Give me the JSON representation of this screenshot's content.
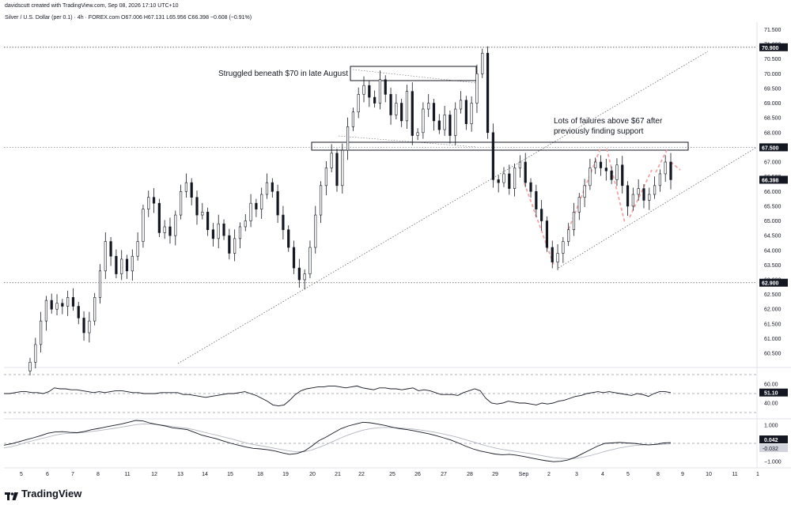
{
  "header": {
    "credit": "davidscutt created with TradingView.com, Sep 08, 2026 17:10 UTC+10",
    "symbol_line": "Silver / U.S. Dollar (per 0.1) · 4h · FOREX.com  O67.006  H67.131  L65.956  C66.398  −0.608 (−0.91%)"
  },
  "brand": {
    "name": "TradingView",
    "icon": "tradingview-logo-icon"
  },
  "colors": {
    "up": "#131722",
    "down": "#131722",
    "hline": "#555555",
    "callout": "#131722",
    "arrow": "#f2a3a3",
    "rsi": "#131722",
    "macd_signal": "#b2b5be"
  },
  "chart_data": [
    {
      "type": "candlestick",
      "title": "Silver / U.S. Dollar (per 0.1) · 4h · FOREX.com",
      "x_ticks": [
        "5",
        "6",
        "7",
        "8",
        "11",
        "12",
        "13",
        "14",
        "15",
        "18",
        "19",
        "20",
        "21",
        "22",
        "25",
        "26",
        "27",
        "28",
        "29",
        "Sep",
        "2",
        "3",
        "4",
        "5",
        "8",
        "9",
        "10",
        "11",
        "1"
      ],
      "y_ticks": [
        60.5,
        61.0,
        61.5,
        62.0,
        62.5,
        63.0,
        63.5,
        64.0,
        64.5,
        65.0,
        65.5,
        66.0,
        66.5,
        67.0,
        67.5,
        68.0,
        68.5,
        69.0,
        69.5,
        70.0,
        70.5,
        71.0,
        71.5
      ],
      "y_range": [
        60.1,
        71.7
      ],
      "price_labels": [
        {
          "value": 70.9,
          "text": "70.900",
          "style": "dotted"
        },
        {
          "value": 67.5,
          "text": "67.500",
          "style": "solid"
        },
        {
          "value": 66.398,
          "text": "66.398",
          "style": "current"
        },
        {
          "value": 62.9,
          "text": "62.900",
          "style": "dotted"
        }
      ],
      "closes": [
        60.2,
        60.8,
        61.6,
        62.3,
        62.0,
        62.2,
        62.1,
        62.4,
        62.1,
        61.7,
        61.2,
        61.6,
        62.4,
        63.3,
        64.3,
        63.8,
        63.2,
        63.7,
        63.3,
        63.8,
        64.3,
        65.4,
        65.8,
        65.6,
        64.6,
        64.8,
        64.5,
        65.2,
        66.0,
        66.3,
        65.8,
        65.2,
        65.3,
        64.7,
        64.4,
        64.9,
        64.5,
        63.9,
        64.4,
        64.8,
        65.0,
        65.6,
        65.4,
        65.9,
        66.3,
        66.0,
        65.2,
        64.7,
        64.1,
        63.4,
        63.0,
        63.2,
        64.1,
        65.2,
        66.2,
        66.8,
        67.3,
        66.2,
        67.4,
        68.2,
        68.7,
        69.3,
        69.6,
        69.2,
        69.0,
        69.8,
        69.3,
        68.6,
        69.0,
        68.4,
        69.4,
        67.9,
        68.0,
        68.8,
        69.0,
        68.4,
        68.1,
        68.6,
        67.9,
        68.8,
        69.1,
        68.3,
        69.0,
        70.0,
        70.7,
        68.0,
        66.4,
        66.3,
        66.6,
        66.1,
        66.8,
        67.0,
        66.3,
        66.0,
        65.4,
        65.0,
        64.1,
        63.6,
        63.9,
        64.3,
        64.7,
        65.3,
        65.8,
        66.2,
        66.8,
        67.0,
        66.8,
        66.7,
        66.4,
        66.9,
        66.2,
        65.5,
        65.9,
        66.1,
        65.7,
        65.9,
        66.2,
        66.6,
        67.0,
        66.4
      ],
      "annotations": [
        {
          "text": "Struggled beneath $70 in late August"
        },
        {
          "text_line1": "Lots of failures above $67 after",
          "text_line2": "previously finding support"
        }
      ]
    },
    {
      "type": "line",
      "name": "rsi",
      "y_ticks": [
        40.0,
        60.0
      ],
      "levels": [
        70,
        50,
        30
      ],
      "current_label": "51.10",
      "y_range": [
        25,
        75
      ],
      "values": [
        50,
        50,
        51,
        52,
        52,
        51,
        51,
        50,
        52,
        56,
        55,
        55,
        54,
        54,
        53,
        52,
        51,
        52,
        51,
        52,
        53,
        53,
        52,
        51,
        51,
        50,
        50,
        50,
        51,
        51,
        51,
        51,
        49,
        49,
        48,
        47,
        46,
        47,
        48,
        49,
        50,
        50,
        51,
        52,
        50,
        48,
        45,
        42,
        38,
        37,
        38,
        43,
        49,
        53,
        55,
        56,
        57,
        57,
        58,
        58,
        57,
        56,
        57,
        58,
        56,
        55,
        54,
        56,
        56,
        55,
        55,
        54,
        55,
        56,
        53,
        54,
        53,
        51,
        49,
        49,
        49,
        48,
        51,
        53,
        55,
        53,
        45,
        40,
        39,
        40,
        42,
        41,
        40,
        40,
        39,
        38,
        40,
        39,
        40,
        42,
        43,
        45,
        47,
        48,
        50,
        51,
        52,
        51,
        52,
        51,
        50,
        49,
        48,
        50,
        49,
        47,
        50,
        52,
        52,
        51
      ]
    },
    {
      "type": "line",
      "name": "macd",
      "y_ticks": [
        -1.0,
        1.0
      ],
      "current_labels": [
        "0.042",
        "-0.032"
      ],
      "y_range": [
        -1.25,
        1.25
      ],
      "series": [
        {
          "name": "macd",
          "values": [
            -0.1,
            -0.02,
            0.08,
            0.2,
            0.3,
            0.42,
            0.55,
            0.62,
            0.64,
            0.6,
            0.58,
            0.65,
            0.75,
            0.82,
            0.9,
            0.98,
            1.05,
            1.15,
            1.25,
            1.22,
            1.1,
            1.02,
            0.95,
            0.85,
            0.8,
            0.75,
            0.6,
            0.45,
            0.35,
            0.25,
            0.12,
            0.0,
            -0.1,
            -0.2,
            -0.27,
            -0.3,
            -0.35,
            -0.42,
            -0.52,
            -0.6,
            -0.55,
            -0.42,
            -0.15,
            0.15,
            0.35,
            0.58,
            0.8,
            0.95,
            1.05,
            1.15,
            1.12,
            1.05,
            0.98,
            0.88,
            0.8,
            0.75,
            0.68,
            0.6,
            0.52,
            0.42,
            0.3,
            0.18,
            0.02,
            -0.15,
            -0.3,
            -0.42,
            -0.5,
            -0.58,
            -0.62,
            -0.6,
            -0.65,
            -0.72,
            -0.8,
            -0.88,
            -0.95,
            -1.0,
            -0.98,
            -0.9,
            -0.75,
            -0.55,
            -0.35,
            -0.15,
            0.0,
            0.02,
            0.05,
            0.02,
            0.0,
            -0.05,
            -0.08,
            -0.05,
            0.02,
            0.04
          ]
        },
        {
          "name": "signal",
          "values": [
            -0.25,
            -0.18,
            -0.08,
            0.05,
            0.15,
            0.25,
            0.35,
            0.45,
            0.52,
            0.55,
            0.57,
            0.6,
            0.65,
            0.7,
            0.76,
            0.82,
            0.88,
            0.95,
            1.02,
            1.06,
            1.05,
            1.02,
            0.98,
            0.92,
            0.87,
            0.82,
            0.74,
            0.64,
            0.54,
            0.45,
            0.35,
            0.25,
            0.14,
            0.03,
            -0.06,
            -0.13,
            -0.2,
            -0.27,
            -0.35,
            -0.42,
            -0.46,
            -0.45,
            -0.36,
            -0.22,
            -0.06,
            0.12,
            0.3,
            0.46,
            0.6,
            0.72,
            0.8,
            0.85,
            0.87,
            0.86,
            0.84,
            0.81,
            0.77,
            0.72,
            0.66,
            0.59,
            0.51,
            0.42,
            0.32,
            0.2,
            0.08,
            -0.04,
            -0.15,
            -0.25,
            -0.33,
            -0.39,
            -0.45,
            -0.51,
            -0.57,
            -0.64,
            -0.71,
            -0.78,
            -0.82,
            -0.84,
            -0.82,
            -0.76,
            -0.67,
            -0.56,
            -0.44,
            -0.34,
            -0.25,
            -0.18,
            -0.12,
            -0.09,
            -0.08,
            -0.07,
            -0.05,
            -0.03
          ]
        }
      ]
    }
  ]
}
